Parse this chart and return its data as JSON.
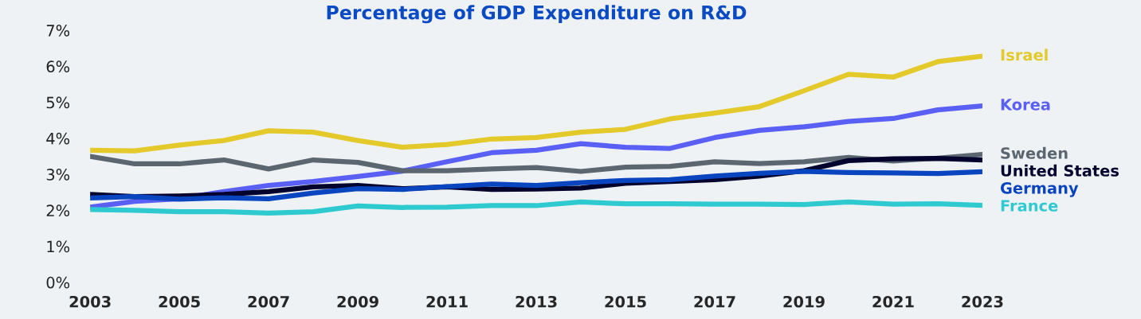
{
  "chart_data": {
    "type": "line",
    "title": "Percentage of GDP Expenditure on R&D",
    "x": [
      2003,
      2004,
      2005,
      2006,
      2007,
      2008,
      2009,
      2010,
      2011,
      2012,
      2013,
      2014,
      2015,
      2016,
      2017,
      2018,
      2019,
      2020,
      2021,
      2022,
      2023
    ],
    "series": [
      {
        "name": "Israel",
        "color": "#e3c92a",
        "values": [
          3.67,
          3.65,
          3.81,
          3.94,
          4.21,
          4.17,
          3.94,
          3.75,
          3.83,
          3.98,
          4.02,
          4.17,
          4.25,
          4.54,
          4.7,
          4.88,
          5.32,
          5.78,
          5.7,
          6.13,
          6.28
        ]
      },
      {
        "name": "Korea",
        "color": "#5a5ff5",
        "values": [
          2.09,
          2.25,
          2.32,
          2.52,
          2.69,
          2.8,
          2.94,
          3.09,
          3.35,
          3.6,
          3.67,
          3.85,
          3.75,
          3.72,
          4.02,
          4.22,
          4.32,
          4.47,
          4.55,
          4.79,
          4.9
        ]
      },
      {
        "name": "Sweden",
        "color": "#5c6670",
        "values": [
          3.5,
          3.29,
          3.29,
          3.4,
          3.15,
          3.4,
          3.33,
          3.1,
          3.1,
          3.15,
          3.19,
          3.08,
          3.2,
          3.22,
          3.35,
          3.3,
          3.35,
          3.47,
          3.37,
          3.45,
          3.55
        ]
      },
      {
        "name": "United States",
        "color": "#03032e",
        "values": [
          2.44,
          2.38,
          2.4,
          2.44,
          2.52,
          2.65,
          2.69,
          2.6,
          2.65,
          2.58,
          2.59,
          2.62,
          2.75,
          2.8,
          2.85,
          2.95,
          3.1,
          3.38,
          3.43,
          3.44,
          3.4
        ]
      },
      {
        "name": "Germany",
        "color": "#0a45c0",
        "values": [
          2.34,
          2.38,
          2.31,
          2.35,
          2.32,
          2.48,
          2.6,
          2.58,
          2.66,
          2.73,
          2.69,
          2.77,
          2.83,
          2.85,
          2.95,
          3.03,
          3.08,
          3.05,
          3.04,
          3.02,
          3.07
        ]
      },
      {
        "name": "France",
        "color": "#2ecad0",
        "values": [
          2.02,
          2.0,
          1.96,
          1.96,
          1.92,
          1.96,
          2.12,
          2.08,
          2.09,
          2.13,
          2.13,
          2.23,
          2.18,
          2.18,
          2.17,
          2.17,
          2.16,
          2.23,
          2.17,
          2.18,
          2.14
        ]
      }
    ],
    "xlim": [
      2003,
      2023
    ],
    "xticks": [
      2003,
      2005,
      2007,
      2009,
      2011,
      2013,
      2015,
      2017,
      2019,
      2021,
      2023
    ],
    "ylim": [
      0,
      7
    ],
    "yticks": [
      {
        "value": 0,
        "label": "0%"
      },
      {
        "value": 1,
        "label": "1%"
      },
      {
        "value": 2,
        "label": "2%"
      },
      {
        "value": 3,
        "label": "3%"
      },
      {
        "value": 4,
        "label": "4%"
      },
      {
        "value": 5,
        "label": "5%"
      },
      {
        "value": 6,
        "label": "6%"
      },
      {
        "value": 7,
        "label": "7%"
      }
    ],
    "grid": false,
    "legend": false,
    "marker": "none",
    "line_style": "solid"
  }
}
